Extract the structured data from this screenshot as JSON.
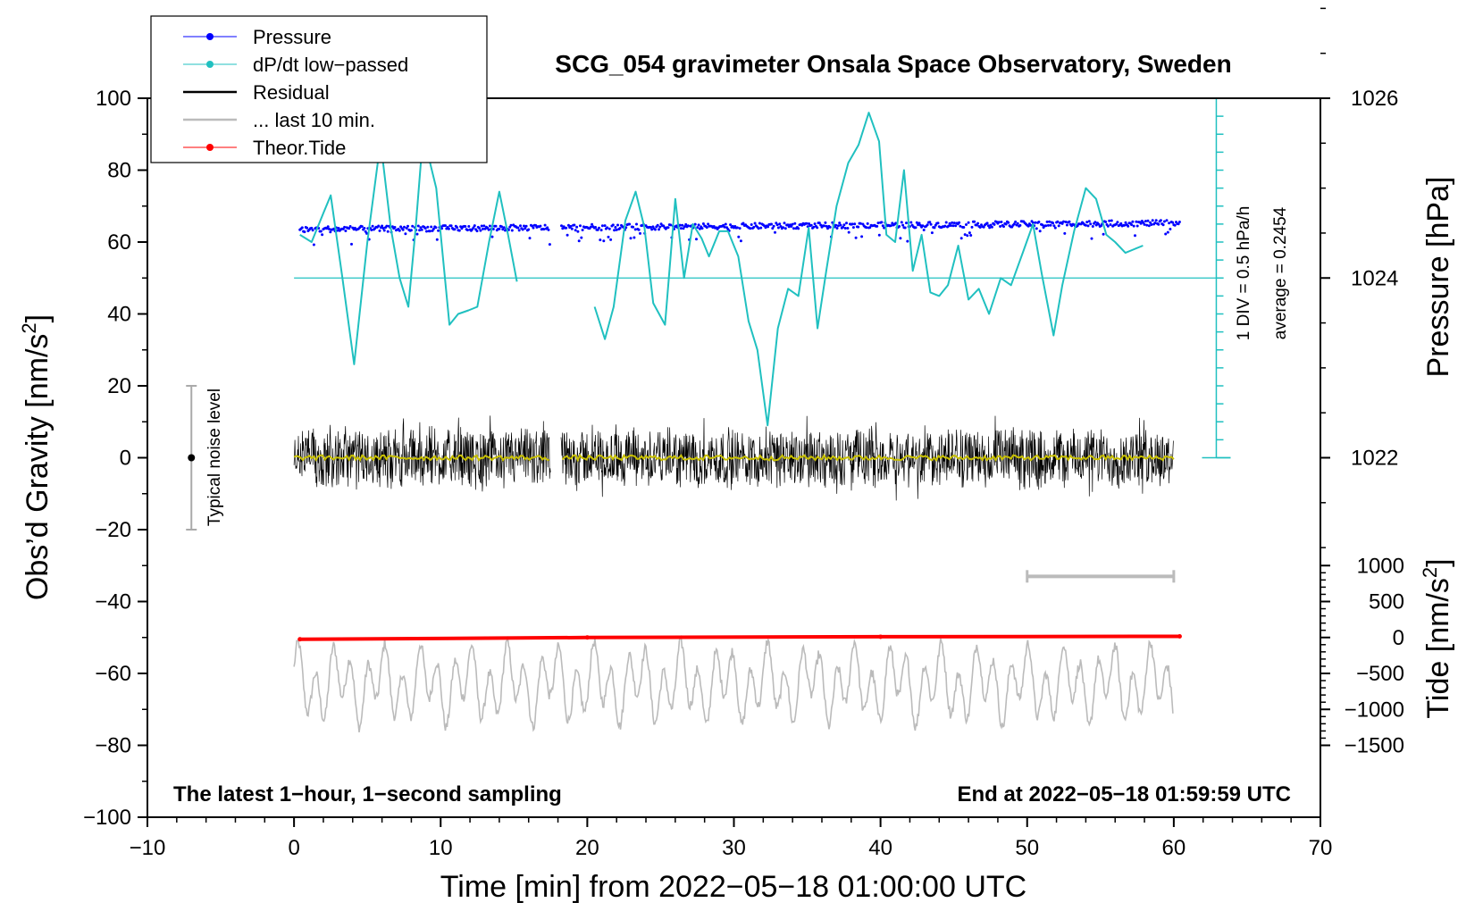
{
  "chart_data": {
    "type": "line",
    "title": "SCG_054 gravimeter Onsala Space Observatory, Sweden",
    "xlabel": "Time [min] from 2022−05−18 01:00:00 UTC",
    "ylabel": "Obs’d Gravity [nm/s",
    "ylabel_sup": "2",
    "ylabel_end": "]",
    "right_label_pressure": "Pressure [hPa]",
    "right_label_tide": "Tide [nm/s",
    "right_label_tide_sup": "2",
    "right_label_tide_end": "]",
    "xlim": [
      -10,
      70
    ],
    "ylim": [
      -100,
      100
    ],
    "x_ticks": [
      -10,
      0,
      10,
      20,
      30,
      40,
      50,
      60,
      70
    ],
    "x_tick_labels": [
      "−10",
      "0",
      "10",
      "20",
      "30",
      "40",
      "50",
      "60",
      "70"
    ],
    "y_ticks": [
      -100,
      -80,
      -60,
      -40,
      -20,
      0,
      20,
      40,
      60,
      80,
      100
    ],
    "y_tick_labels": [
      "−100",
      "−80",
      "−60",
      "−40",
      "−20",
      "0",
      "20",
      "40",
      "60",
      "80",
      "100"
    ],
    "pressure_axis": {
      "ticks": [
        1022,
        1024,
        1026
      ],
      "tick_labels": [
        "1022",
        "1024",
        "1026"
      ],
      "gravity_at_1024": 50,
      "gravity_per_hpa": 25
    },
    "tide_axis": {
      "ticks": [
        1000,
        500,
        0,
        -500,
        -1000,
        -1500
      ],
      "tick_labels": [
        "1000",
        "500",
        "0",
        "−500",
        "−1000",
        "−1500"
      ],
      "gravity_at_0": -50,
      "gravity_per_100": 2
    },
    "annotation_left": "The latest 1−hour, 1−second sampling",
    "annotation_right": "End at 2022−05−18 01:59:59 UTC",
    "div_label": "1 DIV = 0.5 hPa/h",
    "average_label": "average = 0.2454",
    "noise_label": "Typical noise level",
    "noise_bar": {
      "x": -7,
      "y_min": -20,
      "y_max": 20,
      "center": 0
    },
    "dpdt_reference_level": 50,
    "dpdt_scale": {
      "x": 62.9,
      "y_min": 0,
      "y_max": 100,
      "divisions": 20
    },
    "last10_bar": {
      "x_start": 50,
      "x_end": 60,
      "y": -33
    },
    "data_gap": [
      17.5,
      18.2
    ],
    "legend": [
      {
        "label": "Pressure",
        "color": "#0000ff",
        "style": "line-dot"
      },
      {
        "label": "dP/dt low−passed",
        "color": "#20c0c0",
        "style": "line-dot"
      },
      {
        "label": "Residual",
        "color": "#000000",
        "style": "line"
      },
      {
        "label": "... last 10 min.",
        "color": "#bbbbbb",
        "style": "line"
      },
      {
        "label": "Theor.Tide",
        "color": "#ff0000",
        "style": "line-dot"
      }
    ],
    "series": [
      {
        "name": "Pressure",
        "color": "#0000ff",
        "unit": "gravity-axis",
        "level_start": 63.5,
        "level_end": 65.3,
        "scatter_down": 4
      },
      {
        "name": "dP/dt low−passed",
        "color": "#20c0c0",
        "segments": [
          {
            "x": [
              0.4,
              1.2,
              2.0,
              2.5,
              3.3,
              4.1,
              5.0,
              5.9,
              6.6,
              7.2,
              7.8,
              8.3,
              8.8,
              9.7,
              10.6,
              11.2,
              11.9,
              12.5,
              13.3,
              14.0,
              14.6,
              15.2
            ],
            "y": [
              62,
              60,
              68,
              73,
              50,
              26,
              60,
              88,
              64,
              50,
              42,
              64,
              90,
              75,
              37,
              40,
              41,
              42,
              60,
              74,
              62,
              49
            ]
          },
          {
            "x": [
              20.5,
              21.2,
              21.8,
              22.6,
              23.3,
              23.9,
              24.5,
              25.3,
              26.0,
              26.6,
              27.2,
              27.8,
              28.3,
              29.0,
              29.6,
              30.3,
              31.0,
              31.6,
              32.3,
              33.0,
              33.7,
              34.4,
              35.1,
              35.7,
              36.3,
              37.0,
              37.8,
              38.5,
              39.2,
              39.9,
              40.4,
              41.0,
              41.6,
              42.2,
              42.8,
              43.4,
              44.0,
              44.6,
              45.3,
              46.0,
              46.7,
              47.4,
              48.2,
              48.9,
              49.7,
              50.4,
              51.0,
              51.8,
              52.4,
              53.2,
              54.0,
              54.7,
              55.4,
              56.0,
              56.7,
              57.3,
              57.9
            ],
            "y": [
              42,
              33,
              42,
              66,
              74,
              64,
              43,
              37,
              72,
              50,
              65,
              61,
              56,
              63,
              63,
              56,
              38,
              30,
              9,
              36,
              47,
              45,
              64,
              36,
              52,
              70,
              82,
              87,
              96,
              88,
              62,
              60,
              80,
              52,
              62,
              46,
              45,
              48,
              59,
              44,
              47,
              40,
              50,
              48,
              57,
              65,
              51,
              34,
              48,
              63,
              75,
              72,
              62,
              60,
              57,
              58,
              59
            ]
          }
        ]
      },
      {
        "name": "Residual",
        "color": "#000000",
        "unit": "gravity-axis",
        "amplitude": 18
      },
      {
        "name": "Residual smoothed",
        "color": "#c8c000",
        "unit": "gravity-axis",
        "level": 0
      },
      {
        "name": "... last 10 min.",
        "color": "#bbbbbb",
        "unit": "gravity-axis",
        "level": -63,
        "amplitude": 12
      },
      {
        "name": "Theor.Tide",
        "color": "#ff0000",
        "unit": "tide-axis",
        "x": [
          0.4,
          20,
          40,
          60.4
        ],
        "y": [
          -25,
          0,
          10,
          15
        ]
      }
    ]
  }
}
